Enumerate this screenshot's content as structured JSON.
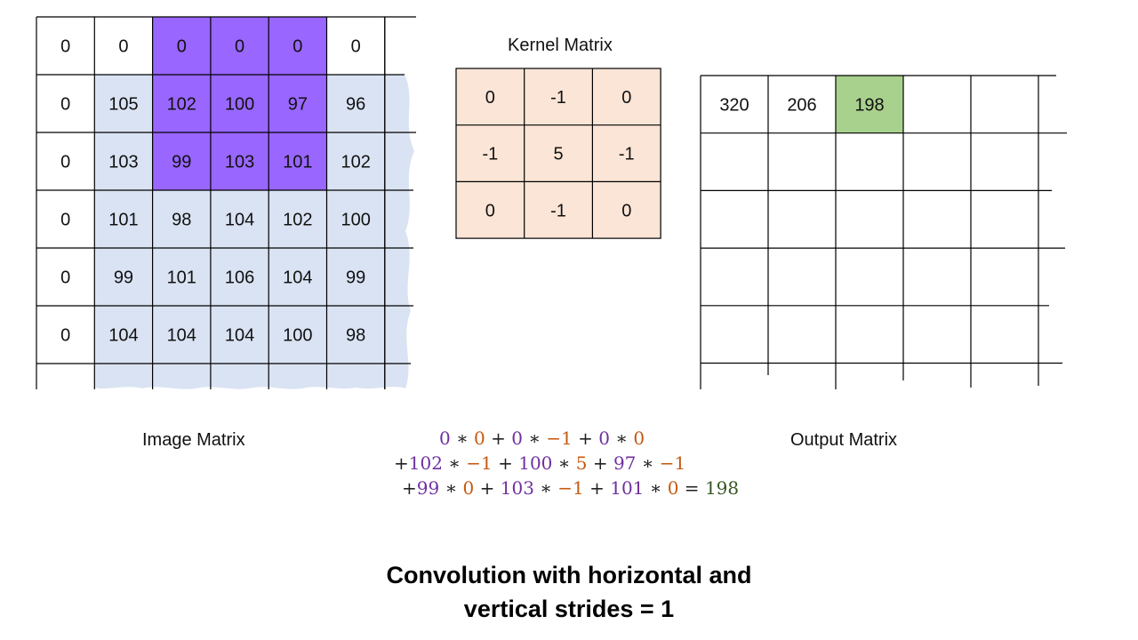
{
  "image_matrix": {
    "label": "Image Matrix",
    "rows": [
      [
        "0",
        "0",
        "0",
        "0",
        "0",
        "0"
      ],
      [
        "0",
        "105",
        "102",
        "100",
        "97",
        "96"
      ],
      [
        "0",
        "103",
        "99",
        "103",
        "101",
        "102"
      ],
      [
        "0",
        "101",
        "98",
        "104",
        "102",
        "100"
      ],
      [
        "0",
        "99",
        "101",
        "106",
        "104",
        "99"
      ],
      [
        "0",
        "104",
        "104",
        "104",
        "100",
        "98"
      ]
    ],
    "highlight_rows": [
      0,
      2
    ],
    "highlight_cols": [
      2,
      4
    ]
  },
  "kernel_matrix": {
    "label": "Kernel Matrix",
    "rows": [
      [
        "0",
        "-1",
        "0"
      ],
      [
        "-1",
        "5",
        "-1"
      ],
      [
        "0",
        "-1",
        "0"
      ]
    ]
  },
  "output_matrix": {
    "label": "Output Matrix",
    "rows": [
      [
        "320",
        "206",
        "198",
        "",
        "",
        ""
      ],
      [
        "",
        "",
        "",
        "",
        "",
        ""
      ],
      [
        "",
        "",
        "",
        "",
        "",
        ""
      ],
      [
        "",
        "",
        "",
        "",
        "",
        ""
      ],
      [
        "",
        "",
        "",
        "",
        "",
        ""
      ]
    ],
    "highlight_cell": [
      0,
      2
    ]
  },
  "equation": {
    "lines": [
      [
        {
          "t": "0",
          "c": "image"
        },
        {
          "t": " ∗ ",
          "c": "op"
        },
        {
          "t": "0",
          "c": "kernel"
        },
        {
          "t": " + ",
          "c": "op"
        },
        {
          "t": "0",
          "c": "image"
        },
        {
          "t": " ∗ ",
          "c": "op"
        },
        {
          "t": "−1",
          "c": "kernel"
        },
        {
          "t": " + ",
          "c": "op"
        },
        {
          "t": "0",
          "c": "image"
        },
        {
          "t": " ∗ ",
          "c": "op"
        },
        {
          "t": "0",
          "c": "kernel"
        }
      ],
      [
        {
          "t": "+",
          "c": "op"
        },
        {
          "t": "102",
          "c": "image"
        },
        {
          "t": " ∗ ",
          "c": "op"
        },
        {
          "t": "−1",
          "c": "kernel"
        },
        {
          "t": " + ",
          "c": "op"
        },
        {
          "t": "100",
          "c": "image"
        },
        {
          "t": " ∗ ",
          "c": "op"
        },
        {
          "t": "5",
          "c": "kernel"
        },
        {
          "t": " + ",
          "c": "op"
        },
        {
          "t": "97",
          "c": "image"
        },
        {
          "t": " ∗ ",
          "c": "op"
        },
        {
          "t": "−1",
          "c": "kernel"
        }
      ],
      [
        {
          "t": "+",
          "c": "op"
        },
        {
          "t": "99",
          "c": "image"
        },
        {
          "t": " ∗ ",
          "c": "op"
        },
        {
          "t": "0",
          "c": "kernel"
        },
        {
          "t": " + ",
          "c": "op"
        },
        {
          "t": "103",
          "c": "image"
        },
        {
          "t": " ∗ ",
          "c": "op"
        },
        {
          "t": "−1",
          "c": "kernel"
        },
        {
          "t": " + ",
          "c": "op"
        },
        {
          "t": "101",
          "c": "image"
        },
        {
          "t": " ∗ ",
          "c": "op"
        },
        {
          "t": "0",
          "c": "kernel"
        },
        {
          "t": " = ",
          "c": "op"
        },
        {
          "t": "198",
          "c": "result"
        }
      ]
    ]
  },
  "caption": {
    "line1": "Convolution with horizontal and",
    "line2": "vertical strides = 1"
  },
  "colors": {
    "image_fill": "#dae3f3",
    "highlight": "#9966ff",
    "kernel_fill": "#fbe5d6",
    "output_highlight": "#a9d18e",
    "grid": "#000000",
    "image_text": "#7030a0",
    "kernel_text": "#c55a11",
    "result_text": "#375623",
    "op_text": "#222222"
  }
}
